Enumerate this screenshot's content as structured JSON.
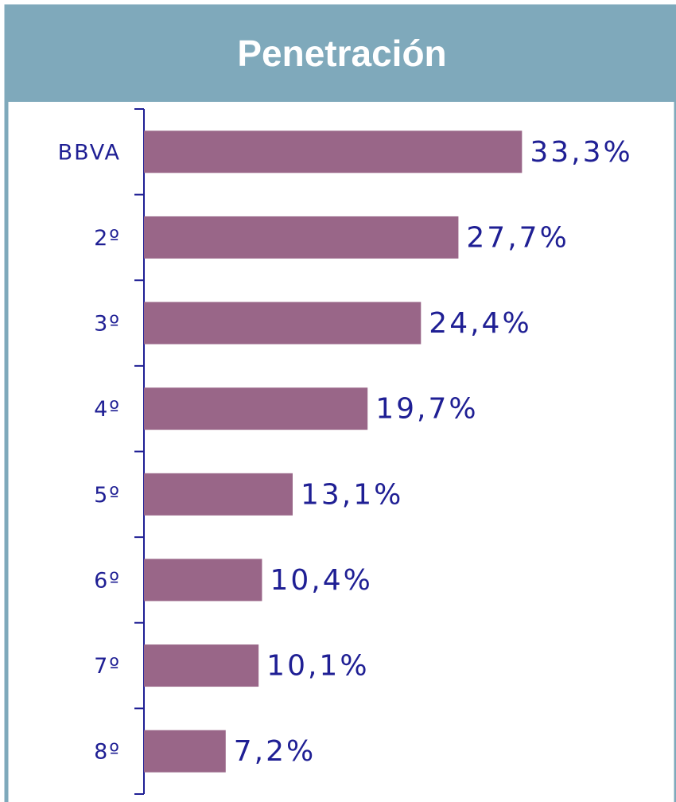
{
  "chart_data": {
    "type": "bar",
    "orientation": "horizontal",
    "title": "Penetración",
    "categories": [
      "BBVA",
      "2º",
      "3º",
      "4º",
      "5º",
      "6º",
      "7º",
      "8º"
    ],
    "values": [
      33.3,
      27.7,
      24.4,
      19.7,
      13.1,
      10.4,
      10.1,
      7.2
    ],
    "value_labels": [
      "33,3%",
      "27,7%",
      "24,4%",
      "19,7%",
      "13,1%",
      "10,4%",
      "10,1%",
      "7,2%"
    ],
    "color": "#996688",
    "xlim": [
      0,
      40
    ]
  }
}
